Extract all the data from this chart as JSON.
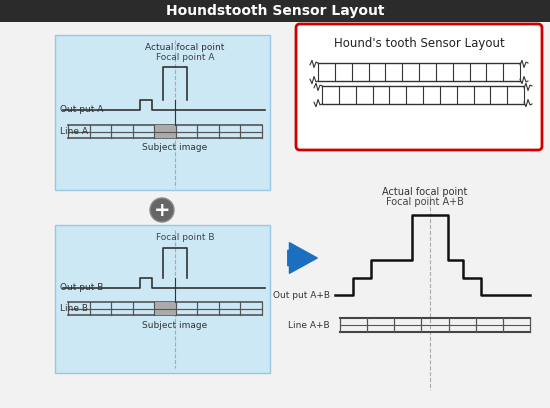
{
  "title": "Houndstooth Sensor Layout",
  "title_bg": "#2b2b2b",
  "title_color": "#ffffff",
  "bg_color": "#f2f2f2",
  "panel_bg": "#cce8f4",
  "panel_border": "#99c8e0",
  "box_inset_color": "#cc0000",
  "inset_title": "Hound's tooth Sensor Layout",
  "label_output_a": "Out put A",
  "label_line_a": "Line A",
  "label_output_b": "Out put B",
  "label_line_b": "Line B",
  "label_focal_a": "Focal point A",
  "label_focal_b": "Focal point B",
  "label_actual_focal_a": "Actual focal point",
  "label_subject_a": "Subject image",
  "label_subject_b": "Subject image",
  "label_output_ab": "Out put A+B",
  "label_line_ab": "Line A+B",
  "label_focal_ab": "Focal point A+B",
  "label_actual_focal_ab": "Actual focal point"
}
